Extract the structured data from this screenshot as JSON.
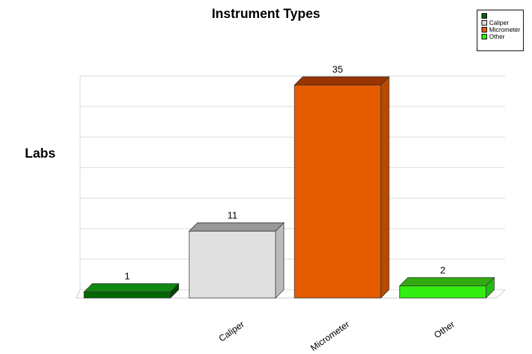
{
  "chart_data": {
    "type": "bar",
    "title": "Instrument Types",
    "ylabel": "Labs",
    "xlabel": "",
    "categories": [
      "",
      "Caliper",
      "Micrometer",
      "Other"
    ],
    "values": [
      1,
      11,
      35,
      2
    ],
    "ylim": [
      0,
      35
    ],
    "grid": true,
    "legend": "top-right",
    "legend_entries": [
      "",
      "Caliper",
      "Micrometer",
      "Other"
    ],
    "colors": {
      "front": [
        "#006600",
        "#e0e0e0",
        "#e55c00",
        "#33ee11"
      ],
      "top": [
        "#118811",
        "#999999",
        "#993300",
        "#33aa11"
      ],
      "side": [
        "#004400",
        "#bbbbbb",
        "#b84a00",
        "#22bb11"
      ],
      "legend": [
        "#006600",
        "#dddddd",
        "#e55c00",
        "#33ee11"
      ]
    }
  }
}
